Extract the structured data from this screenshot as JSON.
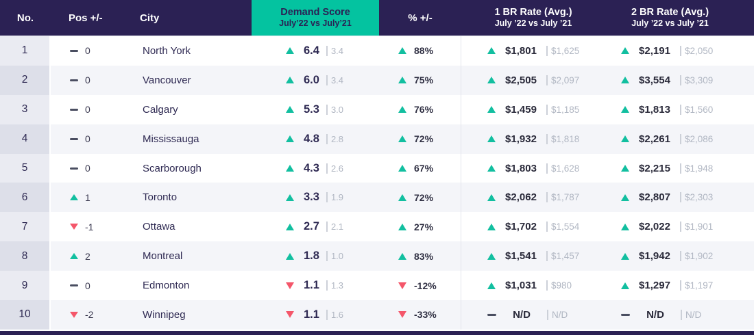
{
  "colors": {
    "header_bg": "#2b2154",
    "accent_teal": "#04c3a0",
    "up": "#12bfa0",
    "down": "#f4566a",
    "row_stripe": "#f4f5f9",
    "rank_odd": "#eaebf2",
    "rank_even": "#dddfe9",
    "muted": "#b0b6c2",
    "ink": "#2e2952"
  },
  "header": {
    "no": "No.",
    "pos": "Pos +/-",
    "city": "City",
    "demand_title": "Demand Score",
    "demand_sub": "July’22 vs July’21",
    "pct": "% +/-",
    "br1_title": "1 BR Rate (Avg.)",
    "br1_sub": "July ’22 vs July ’21",
    "br2_title": "2 BR Rate (Avg.)",
    "br2_sub": "July ’22 vs July ’21"
  },
  "chart_data": {
    "type": "table",
    "columns": [
      "No.",
      "Pos +/-",
      "City",
      "Demand Score July’22 vs July’21",
      "% +/-",
      "1 BR Rate (Avg.) July ’22 vs July ’21",
      "2 BR Rate (Avg.) July ’22 vs July ’21"
    ],
    "rows": [
      {
        "no": "1",
        "pos_dir": "flat",
        "pos": "0",
        "city": "North York",
        "demand_dir": "up",
        "demand": "6.4",
        "demand_prev": "3.4",
        "pct_dir": "up",
        "pct": "88%",
        "br1_dir": "up",
        "br1": "$1,801",
        "br1_prev": "$1,625",
        "br2_dir": "up",
        "br2": "$2,191",
        "br2_prev": "$2,050"
      },
      {
        "no": "2",
        "pos_dir": "flat",
        "pos": "0",
        "city": "Vancouver",
        "demand_dir": "up",
        "demand": "6.0",
        "demand_prev": "3.4",
        "pct_dir": "up",
        "pct": "75%",
        "br1_dir": "up",
        "br1": "$2,505",
        "br1_prev": "$2,097",
        "br2_dir": "up",
        "br2": "$3,554",
        "br2_prev": "$3,309"
      },
      {
        "no": "3",
        "pos_dir": "flat",
        "pos": "0",
        "city": "Calgary",
        "demand_dir": "up",
        "demand": "5.3",
        "demand_prev": "3.0",
        "pct_dir": "up",
        "pct": "76%",
        "br1_dir": "up",
        "br1": "$1,459",
        "br1_prev": "$1,185",
        "br2_dir": "up",
        "br2": "$1,813",
        "br2_prev": "$1,560"
      },
      {
        "no": "4",
        "pos_dir": "flat",
        "pos": "0",
        "city": "Mississauga",
        "demand_dir": "up",
        "demand": "4.8",
        "demand_prev": "2.8",
        "pct_dir": "up",
        "pct": "72%",
        "br1_dir": "up",
        "br1": "$1,932",
        "br1_prev": "$1,818",
        "br2_dir": "up",
        "br2": "$2,261",
        "br2_prev": "$2,086"
      },
      {
        "no": "5",
        "pos_dir": "flat",
        "pos": "0",
        "city": "Scarborough",
        "demand_dir": "up",
        "demand": "4.3",
        "demand_prev": "2.6",
        "pct_dir": "up",
        "pct": "67%",
        "br1_dir": "up",
        "br1": "$1,803",
        "br1_prev": "$1,628",
        "br2_dir": "up",
        "br2": "$2,215",
        "br2_prev": "$1,948"
      },
      {
        "no": "6",
        "pos_dir": "up",
        "pos": "1",
        "city": "Toronto",
        "demand_dir": "up",
        "demand": "3.3",
        "demand_prev": "1.9",
        "pct_dir": "up",
        "pct": "72%",
        "br1_dir": "up",
        "br1": "$2,062",
        "br1_prev": "$1,787",
        "br2_dir": "up",
        "br2": "$2,807",
        "br2_prev": "$2,303"
      },
      {
        "no": "7",
        "pos_dir": "down",
        "pos": "-1",
        "city": "Ottawa",
        "demand_dir": "up",
        "demand": "2.7",
        "demand_prev": "2.1",
        "pct_dir": "up",
        "pct": "27%",
        "br1_dir": "up",
        "br1": "$1,702",
        "br1_prev": "$1,554",
        "br2_dir": "up",
        "br2": "$2,022",
        "br2_prev": "$1,901"
      },
      {
        "no": "8",
        "pos_dir": "up",
        "pos": "2",
        "city": "Montreal",
        "demand_dir": "up",
        "demand": "1.8",
        "demand_prev": "1.0",
        "pct_dir": "up",
        "pct": "83%",
        "br1_dir": "up",
        "br1": "$1,541",
        "br1_prev": "$1,457",
        "br2_dir": "up",
        "br2": "$1,942",
        "br2_prev": "$1,902"
      },
      {
        "no": "9",
        "pos_dir": "flat",
        "pos": "0",
        "city": "Edmonton",
        "demand_dir": "down",
        "demand": "1.1",
        "demand_prev": "1.3",
        "pct_dir": "down",
        "pct": "-12%",
        "br1_dir": "up",
        "br1": "$1,031",
        "br1_prev": "$980",
        "br2_dir": "up",
        "br2": "$1,297",
        "br2_prev": "$1,197"
      },
      {
        "no": "10",
        "pos_dir": "down",
        "pos": "-2",
        "city": "Winnipeg",
        "demand_dir": "down",
        "demand": "1.1",
        "demand_prev": "1.6",
        "pct_dir": "down",
        "pct": "-33%",
        "br1_dir": "flat",
        "br1": "N/D",
        "br1_prev": "N/D",
        "br2_dir": "flat",
        "br2": "N/D",
        "br2_prev": "N/D"
      }
    ]
  }
}
